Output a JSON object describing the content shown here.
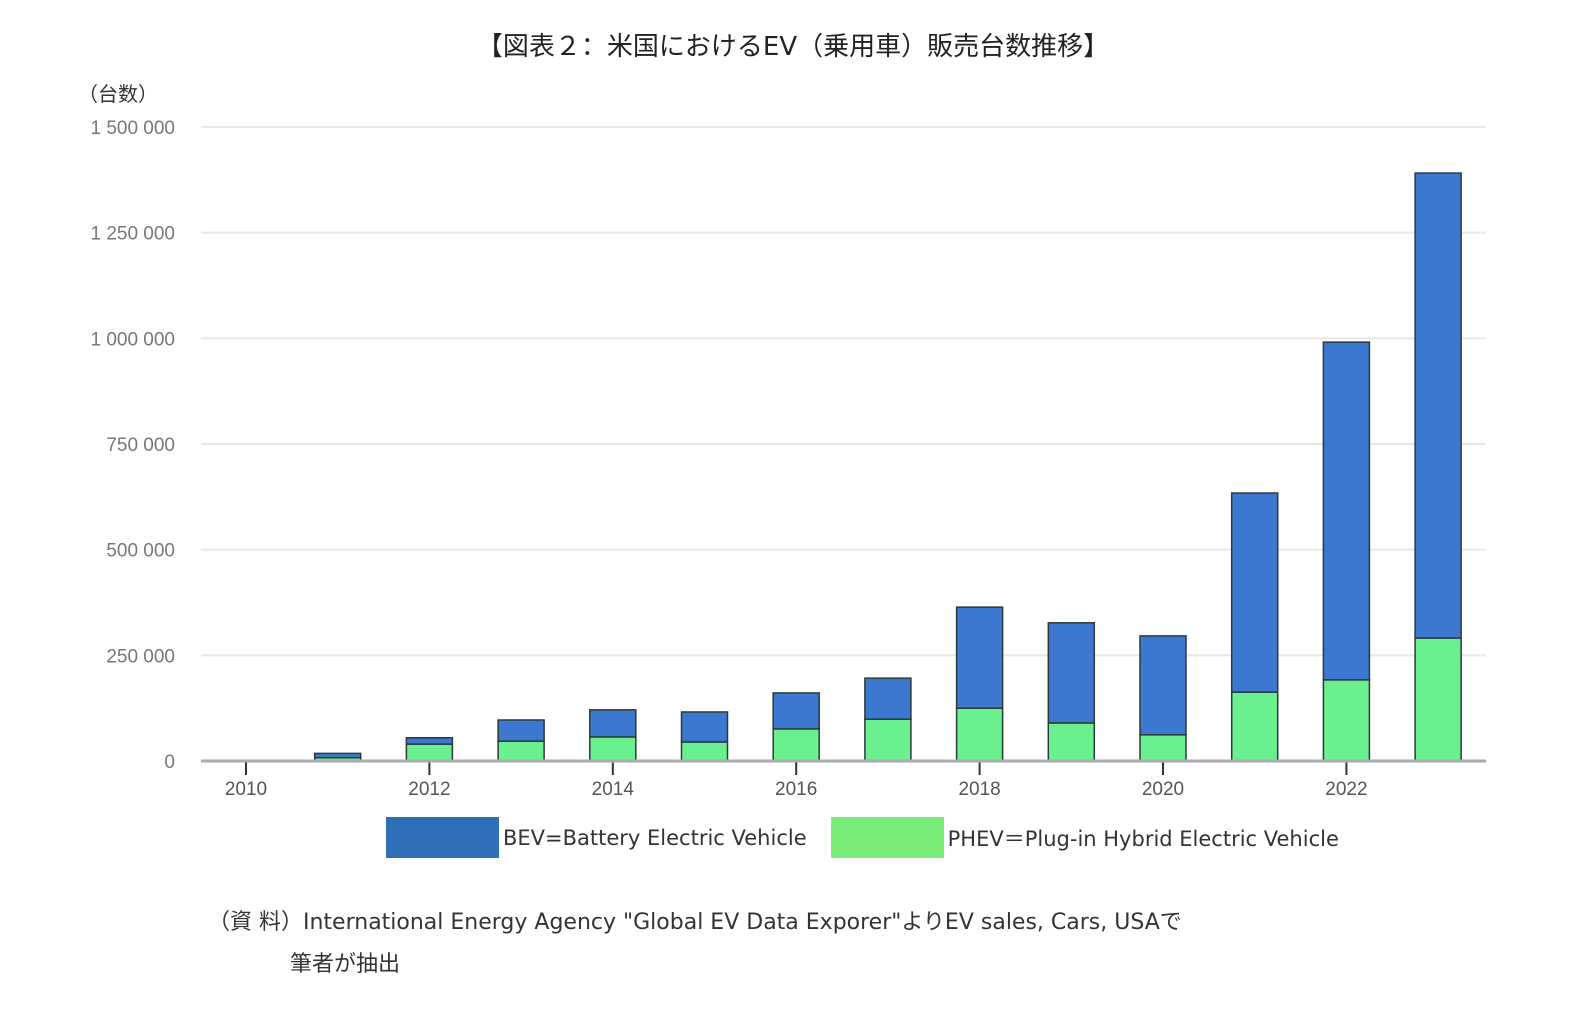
{
  "title": "【図表２：米国におけるEV（乗用車）販売台数推移】",
  "source_line1": "（資 料）International Energy Agency \"Global EV Data Exporer\"よりEV sales, Cars, USAで",
  "source_line2": "筆者が抽出",
  "chart_data": {
    "type": "bar",
    "stacked": true,
    "title": "【図表２：米国におけるEV（乗用車）販売台数推移】",
    "ylabel": "（台数）",
    "xlabel": "",
    "ylim": [
      0,
      1500000
    ],
    "yticks": [
      0,
      250000,
      500000,
      750000,
      1000000,
      1250000,
      1500000
    ],
    "ytick_labels": [
      "0",
      "250 000",
      "500 000",
      "750 000",
      "1 000 000",
      "1 250 000",
      "1 500 000"
    ],
    "categories": [
      "2010",
      "2011",
      "2012",
      "2013",
      "2014",
      "2015",
      "2016",
      "2017",
      "2018",
      "2019",
      "2020",
      "2021",
      "2022",
      "2023"
    ],
    "xtick_labels": [
      "2010",
      "2012",
      "2014",
      "2016",
      "2018",
      "2020",
      "2022"
    ],
    "grid": true,
    "legend_position": "bottom",
    "series": [
      {
        "name": "PHEV＝Plug-in Hybrid Electric Vehicle",
        "color": "#6af08f",
        "legend_color": "#7ded7a",
        "values": [
          300,
          8000,
          40000,
          47000,
          57000,
          45000,
          76000,
          99000,
          125000,
          90000,
          62000,
          163000,
          192000,
          291000
        ]
      },
      {
        "name": "BEV=Battery Electric Vehicle",
        "color": "#3d78d0",
        "legend_color": "#2e6fb8",
        "values": [
          1000,
          10000,
          15000,
          50000,
          64000,
          71000,
          85000,
          97000,
          239000,
          237000,
          234000,
          471000,
          799000,
          1100000
        ]
      }
    ]
  }
}
